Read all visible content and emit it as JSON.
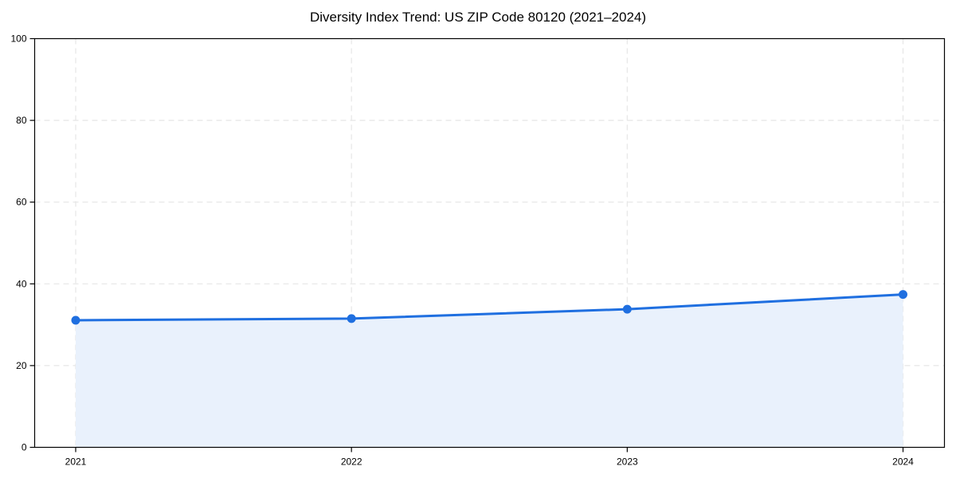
{
  "chart_data": {
    "type": "area",
    "title": "Diversity Index Trend: US ZIP Code 80120 (2021–2024)",
    "categories": [
      "2021",
      "2022",
      "2023",
      "2024"
    ],
    "series": [
      {
        "name": "Diversity Index",
        "values": [
          31.1,
          31.5,
          33.8,
          37.4
        ]
      }
    ],
    "xlabel": "",
    "ylabel": "",
    "ylim": [
      0,
      100
    ],
    "yticks": [
      0,
      20,
      40,
      60,
      80,
      100
    ],
    "grid": true,
    "grid_style": "dashed",
    "legend_position": "none",
    "colors": {
      "line": "#1f6fe0",
      "marker": "#1f6fe0",
      "fill": "#e9f1fc",
      "grid": "#e6e6e6",
      "axis": "#000000",
      "text": "#000000",
      "background": "#ffffff"
    }
  }
}
